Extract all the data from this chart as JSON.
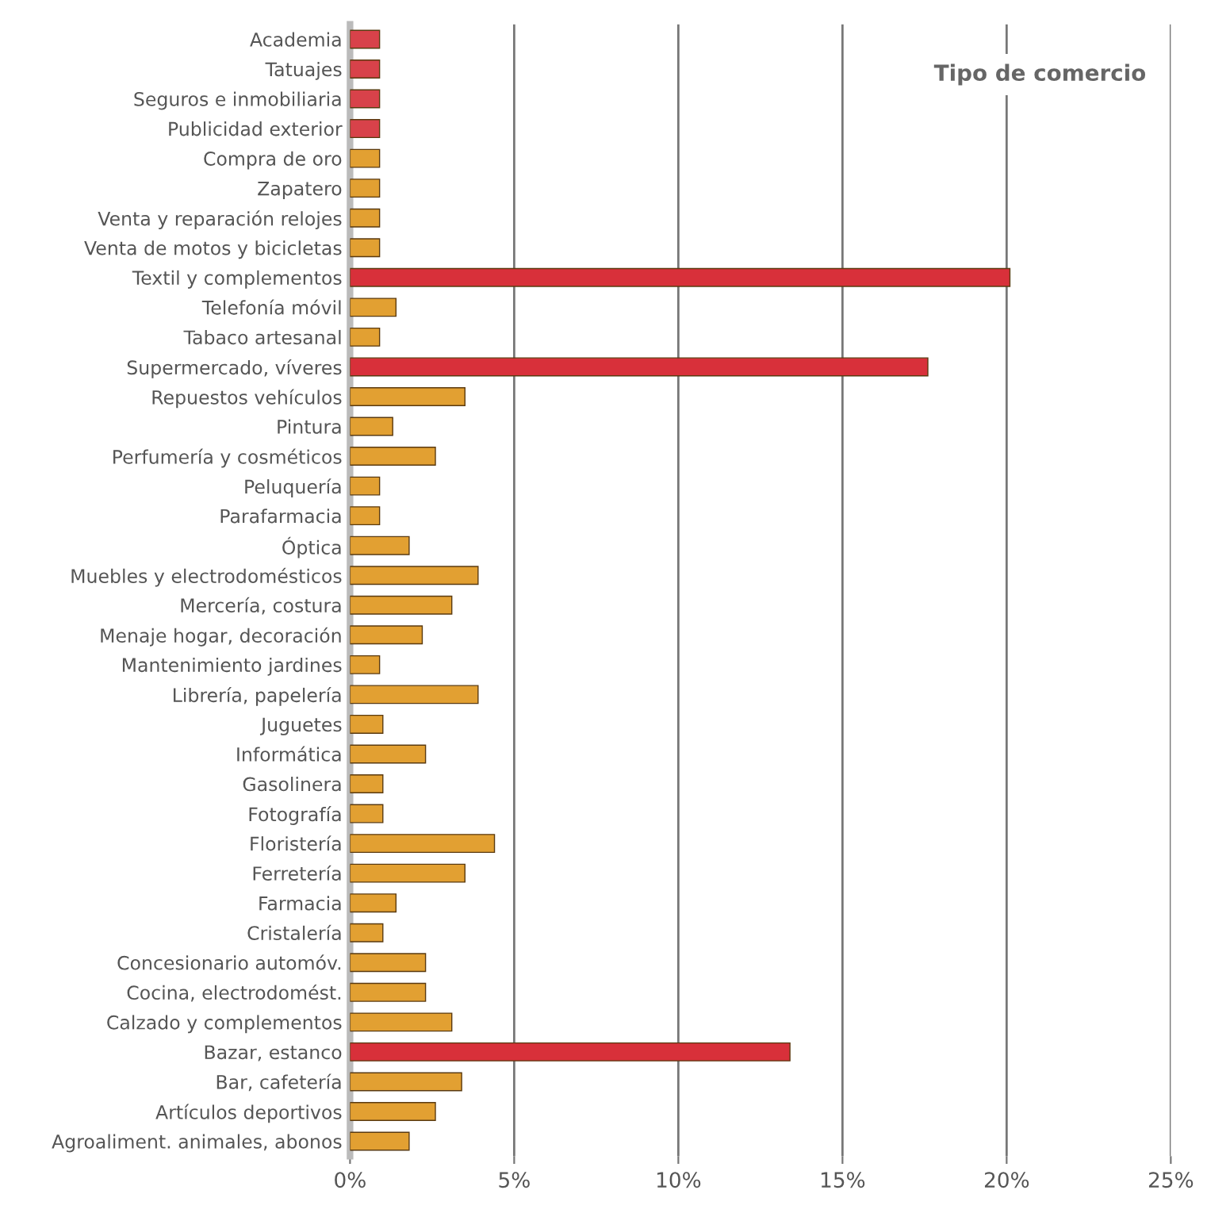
{
  "chart_data": {
    "type": "bar",
    "orientation": "horizontal",
    "title": "Tipo de comercio",
    "categories": [
      "Academia",
      "Tatuajes",
      "Seguros e inmobiliaria",
      "Publicidad exterior",
      "Compra de oro",
      "Zapatero",
      "Venta y reparación relojes",
      "Venta de motos y bicicletas",
      "Textil y complementos",
      "Telefonía móvil",
      "Tabaco artesanal",
      "Supermercado, víveres",
      "Repuestos vehículos",
      "Pintura",
      "Perfumería y cosméticos",
      "Peluquería",
      "Parafarmacia",
      "Óptica",
      "Muebles y electrodomésticos",
      "Mercería, costura",
      "Menaje hogar, decoración",
      "Mantenimiento jardines",
      "Librería, papelería",
      "Juguetes",
      "Informática",
      "Gasolinera",
      "Fotografía",
      "Floristería",
      "Ferretería",
      "Farmacia",
      "Cristalería",
      "Concesionario automóv.",
      "Cocina, electrodomést.",
      "Calzado y complementos",
      "Bazar, estanco",
      "Bar, cafetería",
      "Artículos deportivos",
      "Agroaliment. animales, abonos"
    ],
    "values": [
      0.9,
      0.9,
      0.9,
      0.9,
      0.9,
      0.9,
      0.9,
      0.9,
      20.1,
      1.4,
      0.9,
      17.6,
      3.5,
      1.3,
      2.6,
      0.9,
      0.9,
      1.8,
      3.9,
      3.1,
      2.2,
      0.9,
      3.9,
      1.0,
      2.3,
      1.0,
      1.0,
      4.4,
      3.5,
      1.4,
      1.0,
      2.3,
      2.3,
      3.1,
      13.4,
      3.4,
      2.6,
      1.8
    ],
    "colors": [
      "#d8424a",
      "#d8424a",
      "#d8424a",
      "#d8424a",
      "#e2a032",
      "#e2a032",
      "#e2a032",
      "#e2a032",
      "#d8303a",
      "#e2a032",
      "#e2a032",
      "#d8303a",
      "#e2a032",
      "#e2a032",
      "#e2a032",
      "#e2a032",
      "#e2a032",
      "#e2a032",
      "#e2a032",
      "#e2a032",
      "#e2a032",
      "#e2a032",
      "#e2a032",
      "#e2a032",
      "#e2a032",
      "#e2a032",
      "#e2a032",
      "#e2a032",
      "#e2a032",
      "#e2a032",
      "#e2a032",
      "#e2a032",
      "#e2a032",
      "#e2a032",
      "#d8303a",
      "#e2a032",
      "#e2a032",
      "#e2a032"
    ],
    "xlim": [
      0,
      25
    ],
    "xticks": [
      {
        "value": 0,
        "label": "0%"
      },
      {
        "value": 5,
        "label": "5%"
      },
      {
        "value": 10,
        "label": "10%"
      },
      {
        "value": 15,
        "label": "15%"
      },
      {
        "value": 20,
        "label": "20%"
      },
      {
        "value": 25,
        "label": "25%"
      }
    ],
    "grid": "x"
  }
}
